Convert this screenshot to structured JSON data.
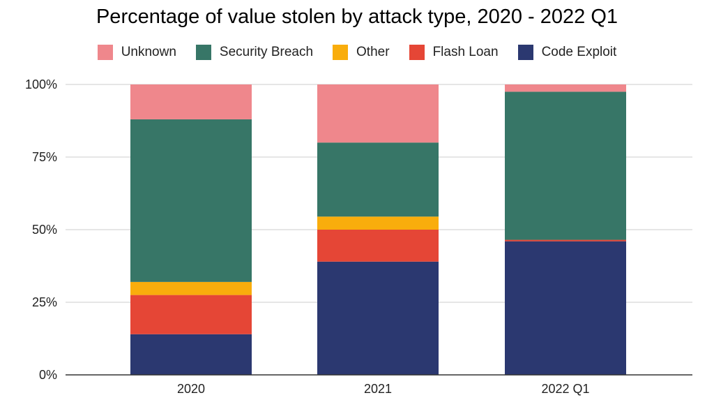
{
  "chart_data": {
    "type": "bar",
    "stacked": true,
    "title": "Percentage of value stolen by attack type, 2020 - 2022 Q1",
    "categories": [
      "2020",
      "2021",
      "2022 Q1"
    ],
    "series": [
      {
        "name": "Code Exploit",
        "color": "#2b3870",
        "values": [
          14,
          39,
          46
        ]
      },
      {
        "name": "Flash Loan",
        "color": "#e54636",
        "values": [
          13.5,
          11,
          0.5
        ]
      },
      {
        "name": "Other",
        "color": "#f9ad0c",
        "values": [
          4.5,
          4.5,
          0
        ]
      },
      {
        "name": "Security Breach",
        "color": "#377667",
        "values": [
          56,
          25.5,
          51
        ]
      },
      {
        "name": "Unknown",
        "color": "#ef878c",
        "values": [
          12,
          20,
          2.5
        ]
      }
    ],
    "legend": {
      "placement": "top",
      "order": [
        "Unknown",
        "Security Breach",
        "Other",
        "Flash Loan",
        "Code Exploit"
      ]
    },
    "ylim": [
      0,
      100
    ],
    "yticks": [
      "0%",
      "25%",
      "50%",
      "75%",
      "100%"
    ],
    "ytick_values": [
      0,
      25,
      50,
      75,
      100
    ],
    "grid": true,
    "xlabel": "",
    "ylabel": ""
  }
}
